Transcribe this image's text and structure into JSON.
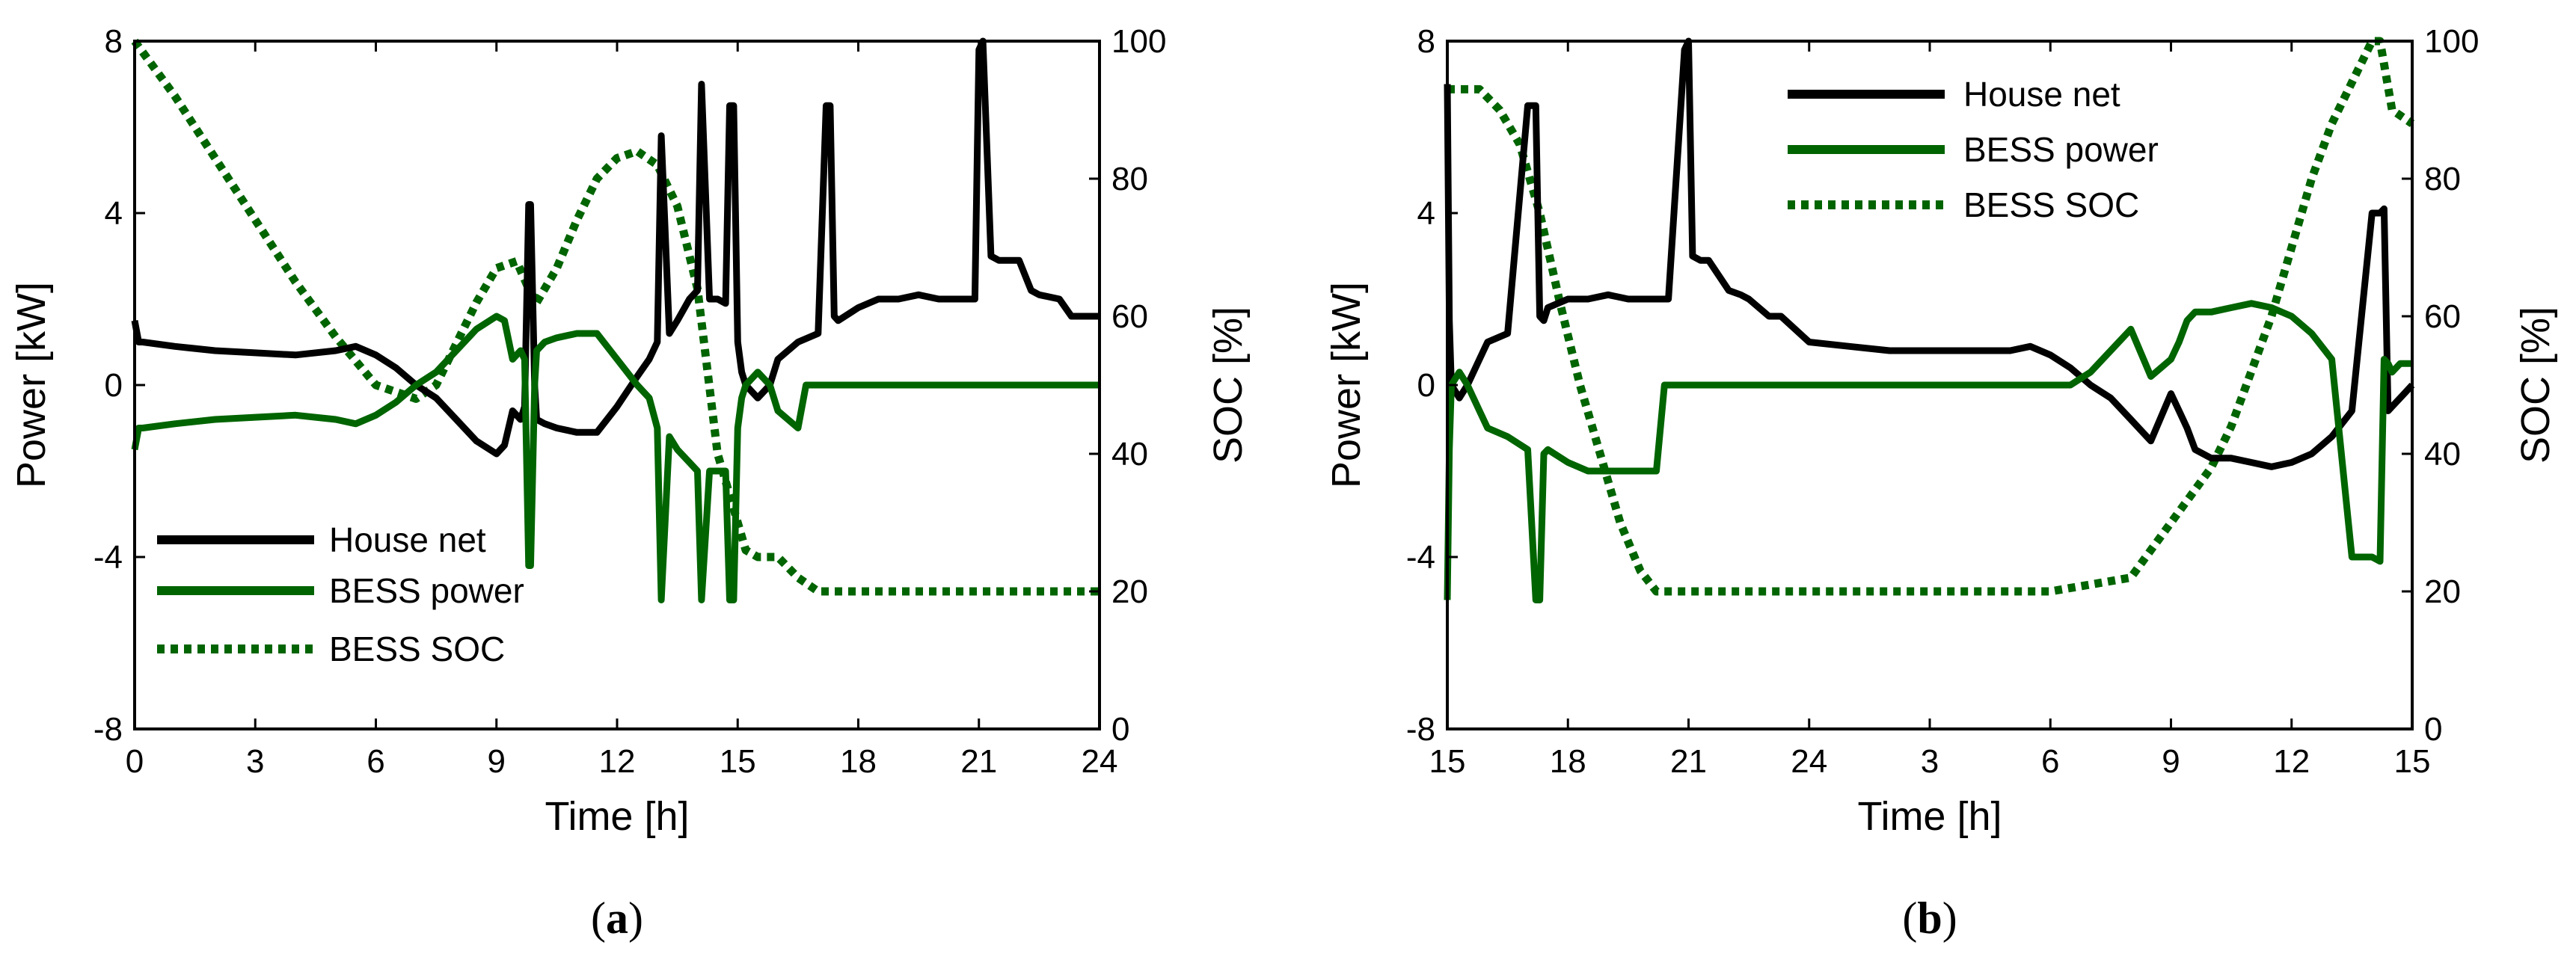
{
  "colors": {
    "house": "#000000",
    "bess": "#006400",
    "background": "#ffffff"
  },
  "chart_data": [
    {
      "type": "line",
      "panel": "a",
      "caption": "(a)",
      "caption_letter": "a",
      "xlabel": "Time [h]",
      "ylabel_left": "Power [kW]",
      "ylabel_right": "SOC [%]",
      "xlim": [
        0,
        24
      ],
      "ylim_left": [
        -8,
        8
      ],
      "ylim_right": [
        0,
        100
      ],
      "x_ticks": [
        0,
        3,
        6,
        9,
        12,
        15,
        18,
        21,
        24
      ],
      "x_tick_labels": [
        "0",
        "3",
        "6",
        "9",
        "12",
        "15",
        "18",
        "21",
        "24"
      ],
      "y_left_ticks": [
        -8,
        -4,
        0,
        4,
        8
      ],
      "y_left_tick_labels": [
        "-8",
        "-4",
        "0",
        "4",
        "8"
      ],
      "y_right_ticks": [
        0,
        20,
        40,
        60,
        80,
        100
      ],
      "y_right_tick_labels": [
        "0",
        "20",
        "40",
        "60",
        "80",
        "100"
      ],
      "legend_position": "bottom-left",
      "grid": false,
      "series": [
        {
          "name": "House net",
          "axis": "left",
          "color": "#000000",
          "style": "solid",
          "x": [
            0,
            0.1,
            0.2,
            1,
            2,
            3,
            4,
            5,
            5.5,
            6,
            6.5,
            7,
            7.5,
            8,
            8.5,
            9,
            9.2,
            9.4,
            9.6,
            9.7,
            9.8,
            9.85,
            9.95,
            10,
            10.2,
            10.5,
            11,
            11.5,
            12,
            12.5,
            12.8,
            13,
            13.1,
            13.3,
            13.5,
            13.8,
            14,
            14.1,
            14.3,
            14.4,
            14.5,
            14.7,
            14.8,
            14.9,
            15,
            15.1,
            15.2,
            15.5,
            15.8,
            16,
            16.5,
            17,
            17.2,
            17.3,
            17.4,
            17.5,
            18,
            18.5,
            19,
            19.5,
            20,
            20.5,
            20.9,
            21,
            21.1,
            21.3,
            21.5,
            22,
            22.3,
            22.5,
            23,
            23.3,
            24
          ],
          "values": [
            1.5,
            1.0,
            1.0,
            0.9,
            0.8,
            0.75,
            0.7,
            0.8,
            0.9,
            0.7,
            0.4,
            0.0,
            -0.3,
            -0.8,
            -1.3,
            -1.6,
            -1.4,
            -0.6,
            -0.8,
            -0.5,
            4.2,
            4.2,
            0.0,
            -0.8,
            -0.9,
            -1.0,
            -1.1,
            -1.1,
            -0.5,
            0.2,
            0.6,
            1.0,
            5.8,
            1.2,
            1.5,
            2.0,
            2.2,
            7.0,
            2.0,
            2.0,
            2.0,
            1.9,
            6.5,
            6.5,
            1.0,
            0.3,
            0.0,
            -0.3,
            0.0,
            0.6,
            1.0,
            1.2,
            6.5,
            6.5,
            1.6,
            1.5,
            1.8,
            2.0,
            2.0,
            2.1,
            2.0,
            2.0,
            2.0,
            7.8,
            8.0,
            3.0,
            2.9,
            2.9,
            2.2,
            2.1,
            2.0,
            1.6,
            1.6
          ]
        },
        {
          "name": "BESS power",
          "axis": "left",
          "color": "#006400",
          "style": "solid",
          "x": [
            0,
            0.1,
            0.2,
            1,
            2,
            3,
            4,
            5,
            5.5,
            6,
            6.5,
            7,
            7.5,
            8,
            8.5,
            9,
            9.2,
            9.4,
            9.6,
            9.7,
            9.8,
            9.85,
            9.95,
            10,
            10.2,
            10.5,
            11,
            11.5,
            12,
            12.5,
            12.8,
            13,
            13.1,
            13.3,
            13.5,
            13.8,
            14,
            14.1,
            14.3,
            14.4,
            14.5,
            14.7,
            14.8,
            14.9,
            15,
            15.1,
            15.2,
            15.5,
            15.8,
            16,
            16.5,
            16.7,
            17,
            24
          ],
          "values": [
            -1.5,
            -1.0,
            -1.0,
            -0.9,
            -0.8,
            -0.75,
            -0.7,
            -0.8,
            -0.9,
            -0.7,
            -0.4,
            0.0,
            0.3,
            0.8,
            1.3,
            1.6,
            1.5,
            0.6,
            0.8,
            0.6,
            -4.2,
            -4.2,
            0.0,
            0.8,
            1.0,
            1.1,
            1.2,
            1.2,
            0.6,
            0.0,
            -0.3,
            -1.0,
            -5.0,
            -1.2,
            -1.5,
            -1.8,
            -2.0,
            -5.0,
            -2.0,
            -2.0,
            -2.0,
            -2.0,
            -5.0,
            -5.0,
            -1.0,
            -0.3,
            0.0,
            0.3,
            0.0,
            -0.6,
            -1.0,
            0.0,
            0.0,
            0.0
          ]
        },
        {
          "name": "BESS SOC",
          "axis": "right",
          "color": "#006400",
          "style": "dotted",
          "x": [
            0,
            1,
            2,
            3,
            4,
            5,
            6,
            7,
            7.5,
            8,
            8.5,
            9,
            9.5,
            9.8,
            10,
            10.5,
            11,
            11.5,
            12,
            12.5,
            13,
            13.5,
            14,
            14.5,
            15,
            15.2,
            15.5,
            16,
            16.5,
            17,
            18,
            20,
            24
          ],
          "values": [
            100,
            92,
            83,
            74,
            65,
            57,
            50,
            48,
            50,
            56,
            62,
            67,
            68,
            64,
            62,
            67,
            74,
            80,
            83,
            84,
            82,
            76,
            64,
            40,
            30,
            26,
            25,
            25,
            22,
            20,
            20,
            20,
            20
          ]
        }
      ]
    },
    {
      "type": "line",
      "panel": "b",
      "caption": "(b)",
      "caption_letter": "b",
      "xlabel": "Time [h]",
      "ylabel_left": "Power [kW]",
      "ylabel_right": "SOC [%]",
      "xlim": [
        15,
        39
      ],
      "ylim_left": [
        -8,
        8
      ],
      "ylim_right": [
        0,
        100
      ],
      "x_ticks": [
        15,
        18,
        21,
        24,
        27,
        30,
        33,
        36,
        39
      ],
      "x_tick_labels": [
        "15",
        "18",
        "21",
        "24",
        "3",
        "6",
        "9",
        "12",
        "15"
      ],
      "y_left_ticks": [
        -8,
        -4,
        0,
        4,
        8
      ],
      "y_left_tick_labels": [
        "-8",
        "-4",
        "0",
        "4",
        "8"
      ],
      "y_right_ticks": [
        0,
        20,
        40,
        60,
        80,
        100
      ],
      "y_right_tick_labels": [
        "0",
        "20",
        "40",
        "60",
        "80",
        "100"
      ],
      "legend_position": "top-center",
      "grid": false,
      "series": [
        {
          "name": "House net",
          "axis": "left",
          "color": "#000000",
          "style": "solid",
          "x": [
            15,
            15.05,
            15.1,
            15.3,
            15.5,
            15.8,
            16,
            16.5,
            17,
            17.2,
            17.3,
            17.4,
            17.5,
            18,
            18.5,
            19,
            19.5,
            20,
            20.5,
            20.9,
            21,
            21.1,
            21.3,
            21.5,
            22,
            22.3,
            22.5,
            23,
            23.3,
            24,
            25,
            26,
            27,
            28,
            29,
            29.5,
            30,
            30.5,
            31,
            31.5,
            32,
            32.5,
            33,
            33.2,
            33.4,
            33.6,
            34,
            34.5,
            35,
            35.5,
            36,
            36.5,
            37,
            37.5,
            38,
            38.2,
            38.3,
            38.4,
            38.5,
            38.7,
            39
          ],
          "values": [
            7.0,
            1.5,
            0.0,
            -0.3,
            0.0,
            0.6,
            1.0,
            1.2,
            6.5,
            6.5,
            1.6,
            1.5,
            1.8,
            2.0,
            2.0,
            2.1,
            2.0,
            2.0,
            2.0,
            7.8,
            8.0,
            3.0,
            2.9,
            2.9,
            2.2,
            2.1,
            2.0,
            1.6,
            1.6,
            1.0,
            0.9,
            0.8,
            0.8,
            0.8,
            0.8,
            0.9,
            0.7,
            0.4,
            0.0,
            -0.3,
            -0.8,
            -1.3,
            -0.2,
            -0.6,
            -1.0,
            -1.5,
            -1.7,
            -1.7,
            -1.8,
            -1.9,
            -1.8,
            -1.6,
            -1.2,
            -0.6,
            4.0,
            4.0,
            4.1,
            -0.6,
            -0.5,
            -0.3,
            0.0
          ]
        },
        {
          "name": "BESS power",
          "axis": "left",
          "color": "#006400",
          "style": "solid",
          "x": [
            15,
            15.05,
            15.1,
            15.3,
            15.5,
            15.8,
            16,
            16.5,
            17,
            17.2,
            17.3,
            17.4,
            17.5,
            18,
            18.5,
            19,
            19.5,
            20,
            20.2,
            20.4,
            21,
            24,
            27,
            30,
            30.5,
            31,
            31.5,
            32,
            32.5,
            33,
            33.2,
            33.4,
            33.6,
            34,
            34.5,
            35,
            35.5,
            36,
            36.5,
            37,
            37.5,
            38,
            38.2,
            38.3,
            38.4,
            38.5,
            38.7,
            39
          ],
          "values": [
            -5.0,
            -1.5,
            0.0,
            0.3,
            0.0,
            -0.6,
            -1.0,
            -1.2,
            -1.5,
            -5.0,
            -5.0,
            -1.6,
            -1.5,
            -1.8,
            -2.0,
            -2.0,
            -2.0,
            -2.0,
            -2.0,
            0.0,
            0.0,
            0.0,
            0.0,
            0.0,
            0.0,
            0.3,
            0.8,
            1.3,
            0.2,
            0.6,
            1.0,
            1.5,
            1.7,
            1.7,
            1.8,
            1.9,
            1.8,
            1.6,
            1.2,
            0.6,
            -4.0,
            -4.0,
            -4.1,
            0.6,
            0.5,
            0.3,
            0.5,
            0.5
          ]
        },
        {
          "name": "BESS SOC",
          "axis": "right",
          "color": "#006400",
          "style": "dotted",
          "x": [
            15,
            15.3,
            15.8,
            16.3,
            16.8,
            17.3,
            17.8,
            18.3,
            18.8,
            19.3,
            19.8,
            20.2,
            20.5,
            24,
            27,
            30,
            32,
            32.5,
            33,
            33.5,
            34,
            34.5,
            35,
            35.5,
            36,
            36.5,
            37,
            37.5,
            38,
            38.2,
            38.5,
            39
          ],
          "values": [
            93,
            93,
            93,
            90,
            85,
            75,
            62,
            50,
            40,
            30,
            23,
            20,
            20,
            20,
            20,
            20,
            22,
            26,
            30,
            34,
            38,
            44,
            52,
            60,
            70,
            80,
            88,
            94,
            100,
            100,
            90,
            88
          ]
        }
      ]
    }
  ]
}
